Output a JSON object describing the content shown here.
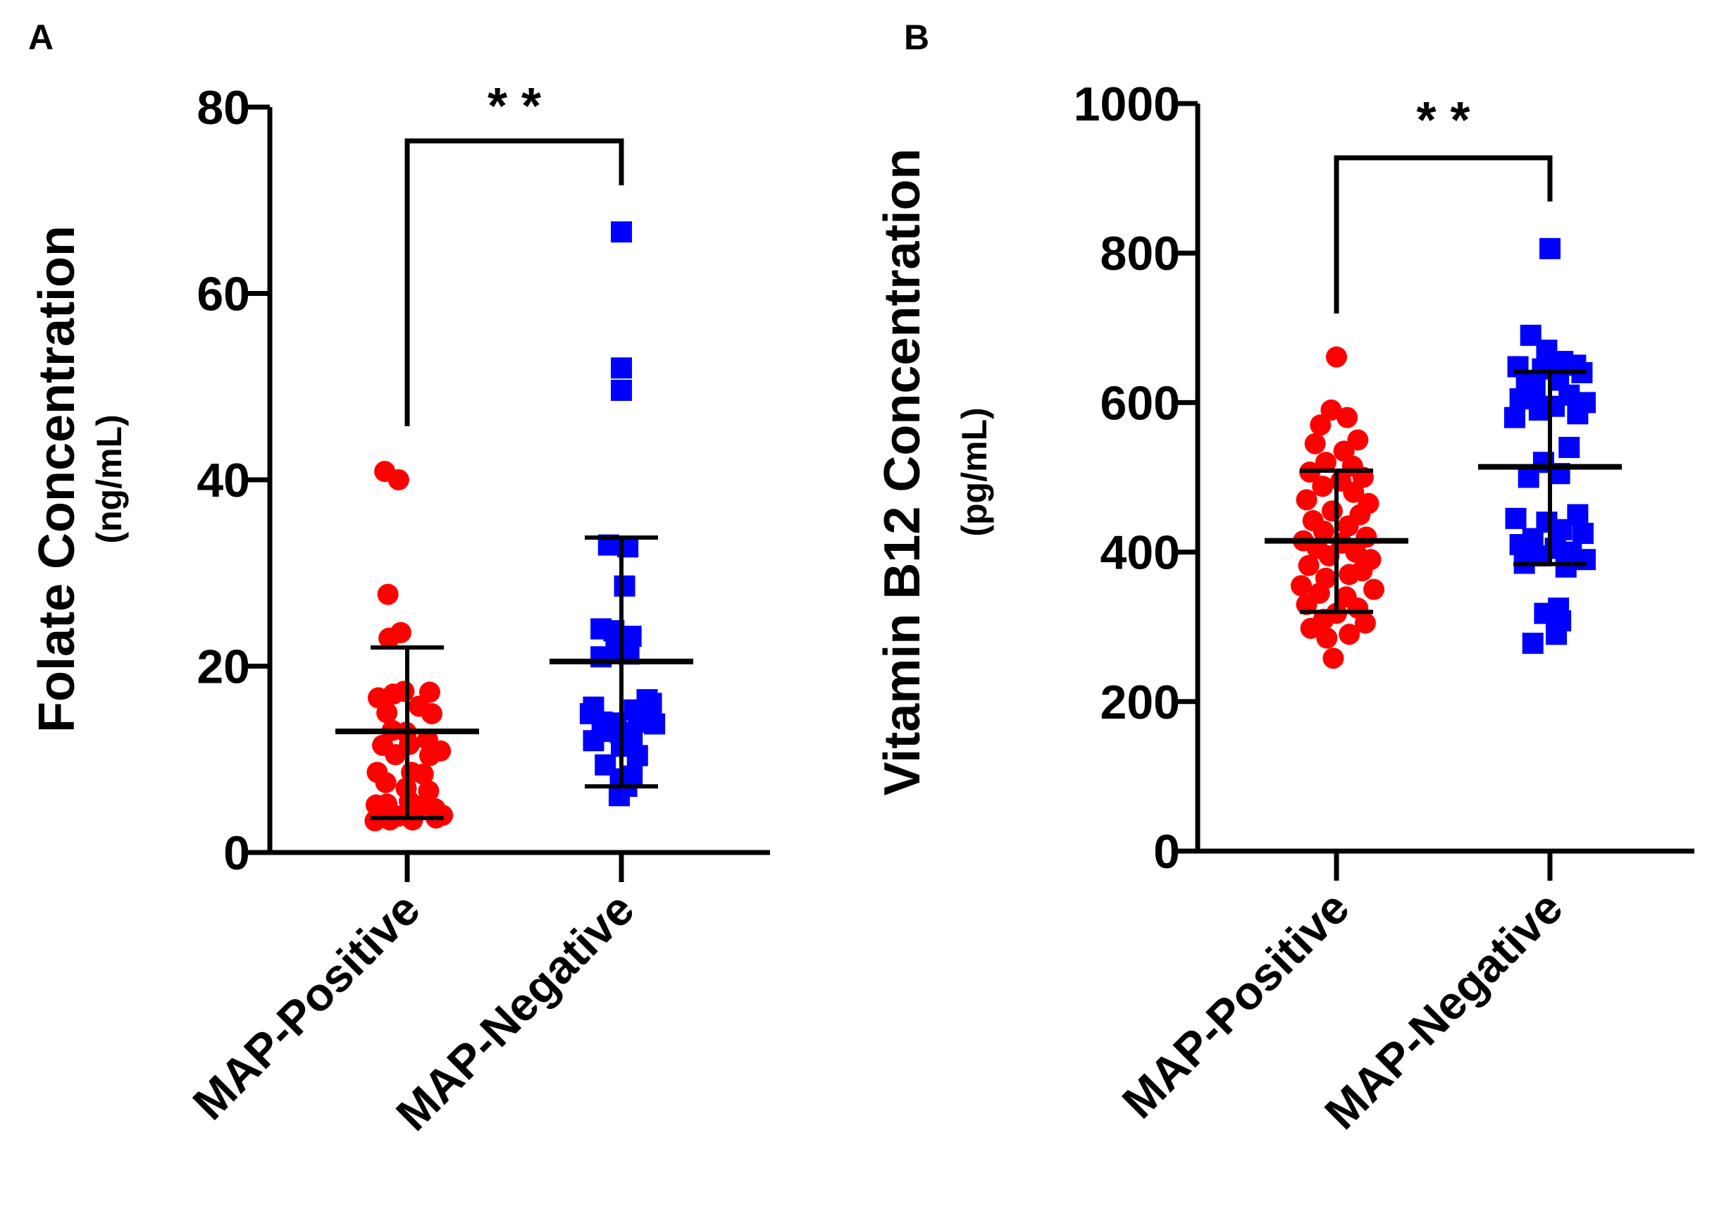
{
  "chart_data": [
    {
      "panel_label": "A",
      "type": "scatter",
      "ylabel": "Folate Concentration",
      "ylabel_unit": "(ng/mL)",
      "ylim": [
        0,
        80
      ],
      "yticks": [
        0,
        20,
        40,
        60,
        80
      ],
      "categories": [
        "MAP-Positive",
        "MAP-Negative"
      ],
      "significance": "* *",
      "colors": [
        "#ff0000",
        "#0000ff"
      ],
      "markers": [
        "circle",
        "square"
      ],
      "series": [
        {
          "name": "MAP-Positive",
          "mean": 13,
          "sd_low": 3.7,
          "sd_high": 22,
          "points": [
            [
              -0.21,
              40.9
            ],
            [
              -0.08,
              40.0
            ],
            [
              -0.18,
              27.7
            ],
            [
              -0.06,
              23.6
            ],
            [
              -0.17,
              23.0
            ],
            [
              -0.03,
              17.3
            ],
            [
              0.21,
              17.2
            ],
            [
              -0.27,
              16.6
            ],
            [
              -0.13,
              17.0
            ],
            [
              -0.19,
              15.0
            ],
            [
              0.11,
              15.7
            ],
            [
              0.23,
              14.9
            ],
            [
              -0.14,
              13.1
            ],
            [
              -0.01,
              12.9
            ],
            [
              0.19,
              12.1
            ],
            [
              -0.23,
              11.5
            ],
            [
              0.02,
              11.6
            ],
            [
              0.31,
              10.9
            ],
            [
              -0.11,
              10.5
            ],
            [
              0.21,
              10.4
            ],
            [
              -0.28,
              8.6
            ],
            [
              0.04,
              8.6
            ],
            [
              0.15,
              8.4
            ],
            [
              -0.2,
              7.5
            ],
            [
              -0.01,
              6.9
            ],
            [
              0.2,
              6.6
            ],
            [
              -0.29,
              5.1
            ],
            [
              -0.19,
              5.2
            ],
            [
              0.02,
              5.5
            ],
            [
              0.13,
              5.0
            ],
            [
              0.26,
              4.7
            ],
            [
              -0.27,
              3.9
            ],
            [
              -0.08,
              3.9
            ],
            [
              0.05,
              3.9
            ],
            [
              0.27,
              3.7
            ],
            [
              0.33,
              4.0
            ],
            [
              -0.3,
              3.4
            ],
            [
              -0.16,
              3.5
            ],
            [
              0.05,
              3.5
            ]
          ]
        },
        {
          "name": "MAP-Negative",
          "mean": 20.5,
          "sd_low": 7.1,
          "sd_high": 33.8,
          "points": [
            [
              0.0,
              66.6
            ],
            [
              0.0,
              52.0
            ],
            [
              0.0,
              49.6
            ],
            [
              -0.12,
              33.0
            ],
            [
              0.06,
              32.8
            ],
            [
              0.03,
              28.6
            ],
            [
              -0.19,
              24.0
            ],
            [
              -0.07,
              23.8
            ],
            [
              0.09,
              23.2
            ],
            [
              -0.05,
              21.8
            ],
            [
              0.07,
              21.3
            ],
            [
              -0.19,
              21.0
            ],
            [
              0.24,
              16.4
            ],
            [
              0.28,
              16.0
            ],
            [
              -0.26,
              15.6
            ],
            [
              0.12,
              15.3
            ],
            [
              -0.29,
              14.9
            ],
            [
              -0.18,
              14.0
            ],
            [
              0.16,
              14.0
            ],
            [
              -0.05,
              13.9
            ],
            [
              0.31,
              13.8
            ],
            [
              -0.16,
              13.0
            ],
            [
              -0.01,
              12.9
            ],
            [
              0.1,
              12.3
            ],
            [
              -0.26,
              12.0
            ],
            [
              0.0,
              11.4
            ],
            [
              0.15,
              10.4
            ],
            [
              -0.15,
              9.4
            ],
            [
              -0.01,
              7.9
            ],
            [
              0.1,
              8.2
            ],
            [
              0.05,
              7.1
            ],
            [
              -0.02,
              6.1
            ]
          ]
        }
      ]
    },
    {
      "panel_label": "B",
      "type": "scatter",
      "ylabel": "Vitamin B12 Concentration",
      "ylabel_unit": "(pg/mL)",
      "ylim": [
        0,
        1000
      ],
      "yticks": [
        0,
        200,
        400,
        600,
        800,
        1000
      ],
      "categories": [
        "MAP-Positive",
        "MAP-Negative"
      ],
      "significance": "* *",
      "colors": [
        "#ff0000",
        "#0000ff"
      ],
      "markers": [
        "circle",
        "square"
      ],
      "series": [
        {
          "name": "MAP-Positive",
          "mean": 415,
          "sd_low": 320,
          "sd_high": 509,
          "points": [
            [
              0.0,
              661
            ],
            [
              -0.05,
              590
            ],
            [
              0.1,
              580
            ],
            [
              -0.15,
              570
            ],
            [
              0.2,
              550
            ],
            [
              -0.2,
              545
            ],
            [
              0.07,
              535
            ],
            [
              -0.1,
              520
            ],
            [
              0.15,
              515
            ],
            [
              -0.25,
              507
            ],
            [
              0.25,
              500
            ],
            [
              0.04,
              495
            ],
            [
              -0.13,
              488
            ],
            [
              0.16,
              480
            ],
            [
              -0.28,
              470
            ],
            [
              0.3,
              465
            ],
            [
              -0.04,
              455
            ],
            [
              0.22,
              450
            ],
            [
              -0.22,
              442
            ],
            [
              0.11,
              435
            ],
            [
              -0.12,
              428
            ],
            [
              0.28,
              420
            ],
            [
              -0.31,
              415
            ],
            [
              0.05,
              412
            ],
            [
              -0.18,
              405
            ],
            [
              0.18,
              400
            ],
            [
              -0.07,
              395
            ],
            [
              0.32,
              390
            ],
            [
              -0.26,
              382
            ],
            [
              0.24,
              375
            ],
            [
              0.12,
              370
            ],
            [
              -0.1,
              365
            ],
            [
              -0.33,
              355
            ],
            [
              0.35,
              350
            ],
            [
              -0.16,
              345
            ],
            [
              0.09,
              340
            ],
            [
              -0.28,
              330
            ],
            [
              0.2,
              325
            ],
            [
              0.0,
              318
            ],
            [
              -0.12,
              310
            ],
            [
              0.27,
              305
            ],
            [
              -0.24,
              298
            ],
            [
              0.12,
              290
            ],
            [
              -0.09,
              285
            ],
            [
              -0.03,
              258
            ]
          ]
        },
        {
          "name": "MAP-Negative",
          "mean": 514,
          "sd_low": 384,
          "sd_high": 641,
          "points": [
            [
              0.0,
              806
            ],
            [
              -0.18,
              690
            ],
            [
              -0.03,
              670
            ],
            [
              0.12,
              655
            ],
            [
              0.24,
              650
            ],
            [
              -0.3,
              648
            ],
            [
              -0.07,
              645
            ],
            [
              0.3,
              640
            ],
            [
              0.08,
              630
            ],
            [
              -0.22,
              625
            ],
            [
              -0.14,
              618
            ],
            [
              0.18,
              610
            ],
            [
              -0.28,
              605
            ],
            [
              0.33,
              600
            ],
            [
              0.04,
              595
            ],
            [
              -0.1,
              590
            ],
            [
              0.26,
              585
            ],
            [
              -0.33,
              580
            ],
            [
              0.18,
              540
            ],
            [
              -0.06,
              520
            ],
            [
              0.09,
              505
            ],
            [
              -0.2,
              500
            ],
            [
              0.26,
              450
            ],
            [
              -0.32,
              445
            ],
            [
              -0.03,
              440
            ],
            [
              0.11,
              430
            ],
            [
              0.31,
              425
            ],
            [
              -0.16,
              418
            ],
            [
              -0.28,
              410
            ],
            [
              0.05,
              405
            ],
            [
              0.2,
              400
            ],
            [
              -0.09,
              395
            ],
            [
              0.33,
              390
            ],
            [
              -0.24,
              385
            ],
            [
              0.15,
              380
            ],
            [
              0.08,
              325
            ],
            [
              -0.05,
              318
            ],
            [
              0.1,
              308
            ],
            [
              0.06,
              290
            ],
            [
              -0.16,
              278
            ]
          ]
        }
      ]
    }
  ]
}
